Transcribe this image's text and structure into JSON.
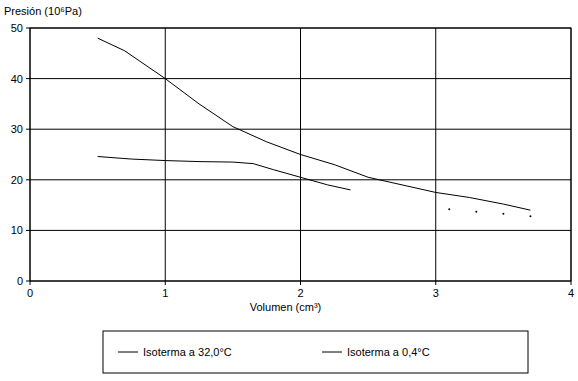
{
  "chart_data": {
    "type": "line",
    "y_label": "Presión (10⁶Pa)",
    "x_label": "Volumen (cm³)",
    "xlim": [
      0,
      4
    ],
    "ylim": [
      0,
      50
    ],
    "xticks": [
      0,
      1,
      2,
      3,
      4
    ],
    "yticks": [
      0,
      10,
      20,
      30,
      40,
      50
    ],
    "grid": true,
    "legend": "bottom",
    "series": [
      {
        "name": "Isoterma a 32,0°C",
        "color": "#000000",
        "x": [
          0.5,
          0.7,
          1.0,
          1.25,
          1.5,
          1.75,
          2.0,
          2.25,
          2.5,
          2.75,
          3.0,
          3.25,
          3.5,
          3.7
        ],
        "values": [
          48,
          45.5,
          40,
          35,
          30.5,
          27.5,
          25,
          23,
          20.5,
          19,
          17.5,
          16.5,
          15.2,
          14
        ]
      },
      {
        "name": "Isoterma a 0,4°C",
        "color": "#000000",
        "x": [
          0.5,
          0.75,
          1.0,
          1.25,
          1.5,
          1.65,
          1.8,
          2.0,
          2.2,
          2.37,
          2.7,
          3.1,
          3.2,
          3.3,
          3.4,
          3.5,
          3.6,
          3.7
        ],
        "values": [
          24.6,
          24.1,
          23.8,
          23.6,
          23.5,
          23.2,
          22,
          20.5,
          19,
          18,
          null,
          14.2,
          null,
          13.7,
          null,
          13.3,
          null,
          12.8
        ]
      }
    ]
  }
}
